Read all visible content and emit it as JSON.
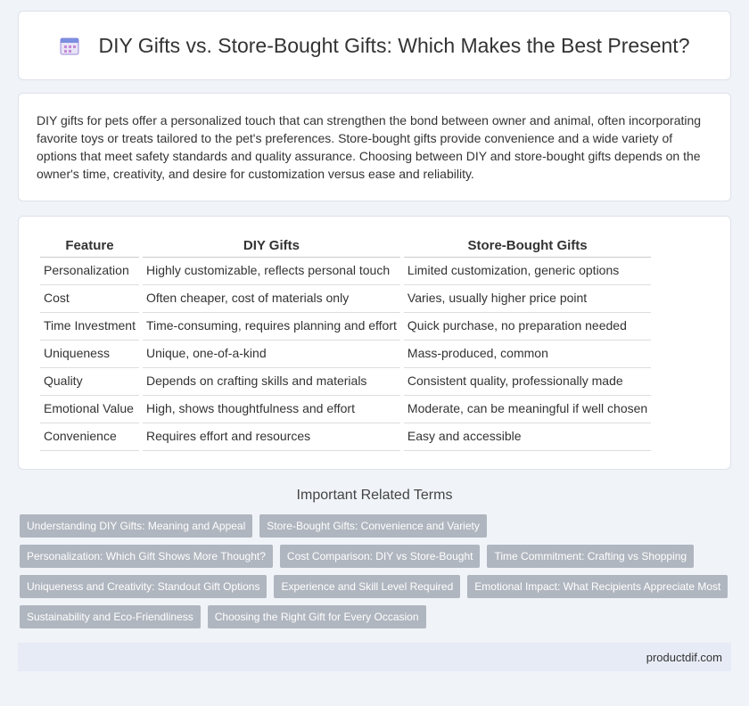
{
  "header": {
    "title": "DIY Gifts vs. Store-Bought Gifts: Which Makes the Best Present?"
  },
  "intro": "DIY gifts for pets offer a personalized touch that can strengthen the bond between owner and animal, often incorporating favorite toys or treats tailored to the pet's preferences. Store-bought gifts provide convenience and a wide variety of options that meet safety standards and quality assurance. Choosing between DIY and store-bought gifts depends on the owner's time, creativity, and desire for customization versus ease and reliability.",
  "table": {
    "headers": [
      "Feature",
      "DIY Gifts",
      "Store-Bought Gifts"
    ],
    "rows": [
      [
        "Personalization",
        "Highly customizable, reflects personal touch",
        "Limited customization, generic options"
      ],
      [
        "Cost",
        "Often cheaper, cost of materials only",
        "Varies, usually higher price point"
      ],
      [
        "Time Investment",
        "Time-consuming, requires planning and effort",
        "Quick purchase, no preparation needed"
      ],
      [
        "Uniqueness",
        "Unique, one-of-a-kind",
        "Mass-produced, common"
      ],
      [
        "Quality",
        "Depends on crafting skills and materials",
        "Consistent quality, professionally made"
      ],
      [
        "Emotional Value",
        "High, shows thoughtfulness and effort",
        "Moderate, can be meaningful if well chosen"
      ],
      [
        "Convenience",
        "Requires effort and resources",
        "Easy and accessible"
      ]
    ]
  },
  "related": {
    "title": "Important Related Terms",
    "tags": [
      "Understanding DIY Gifts: Meaning and Appeal",
      "Store-Bought Gifts: Convenience and Variety",
      "Personalization: Which Gift Shows More Thought?",
      "Cost Comparison: DIY vs Store-Bought",
      "Time Commitment: Crafting vs Shopping",
      "Uniqueness and Creativity: Standout Gift Options",
      "Experience and Skill Level Required",
      "Emotional Impact: What Recipients Appreciate Most",
      "Sustainability and Eco-Friendliness",
      "Choosing the Right Gift for Every Occasion"
    ]
  },
  "footer": {
    "site": "productdif.com"
  }
}
